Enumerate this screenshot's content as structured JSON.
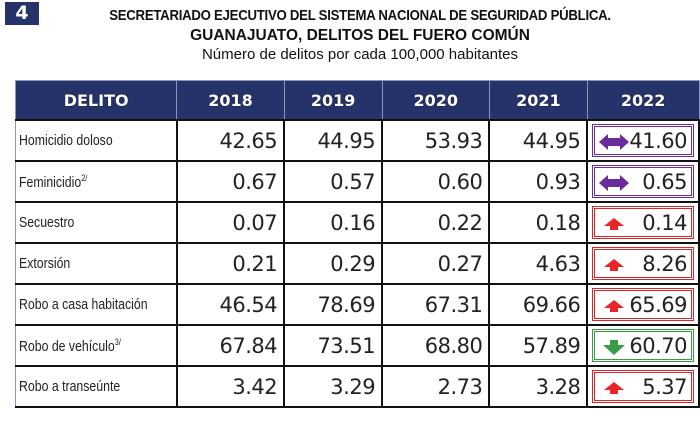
{
  "badge": "4",
  "title_line1": "SECRETARIADO EJECUTIVO DEL SISTEMA NACIONAL DE SEGURIDAD PÚBLICA.",
  "title_line2": "GUANAJUATO, DELITOS DEL FUERO COMÚN",
  "title_line3": "Número de delitos por cada 100,000 habitantes",
  "colors": {
    "header_bg": "#25336a",
    "purple": "#6a2c9a",
    "red": "#d8262a",
    "green": "#3a9a45"
  },
  "headers": [
    "DELITO",
    "2018",
    "2019",
    "2020",
    "2021",
    "2022"
  ],
  "rows": [
    {
      "label": "Homicidio doloso",
      "sup": "",
      "v2018": "42.65",
      "v2019": "44.95",
      "v2020": "53.93",
      "v2021": "44.95",
      "v2022": "41.60",
      "trend": "stable",
      "icon": "double-arrow-icon"
    },
    {
      "label": "Feminicidio",
      "sup": "2/",
      "v2018": "0.67",
      "v2019": "0.57",
      "v2020": "0.60",
      "v2021": "0.93",
      "v2022": "0.65",
      "trend": "stable",
      "icon": "double-arrow-icon"
    },
    {
      "label": "Secuestro",
      "sup": "",
      "v2018": "0.07",
      "v2019": "0.16",
      "v2020": "0.22",
      "v2021": "0.18",
      "v2022": "0.14",
      "trend": "up",
      "icon": "arrow-up-icon"
    },
    {
      "label": "Extorsión",
      "sup": "",
      "v2018": "0.21",
      "v2019": "0.29",
      "v2020": "0.27",
      "v2021": "4.63",
      "v2022": "8.26",
      "trend": "up",
      "icon": "arrow-up-icon"
    },
    {
      "label": "Robo a casa habitación",
      "sup": "",
      "v2018": "46.54",
      "v2019": "78.69",
      "v2020": "67.31",
      "v2021": "69.66",
      "v2022": "65.69",
      "trend": "up",
      "icon": "arrow-up-icon"
    },
    {
      "label": "Robo de vehículo",
      "sup": "3/",
      "v2018": "67.84",
      "v2019": "73.51",
      "v2020": "68.80",
      "v2021": "57.89",
      "v2022": "60.70",
      "trend": "down",
      "icon": "arrow-down-icon"
    },
    {
      "label": "Robo a transeúnte",
      "sup": "",
      "v2018": "3.42",
      "v2019": "3.29",
      "v2020": "2.73",
      "v2021": "3.28",
      "v2022": "5.37",
      "trend": "up",
      "icon": "arrow-up-icon"
    }
  ]
}
